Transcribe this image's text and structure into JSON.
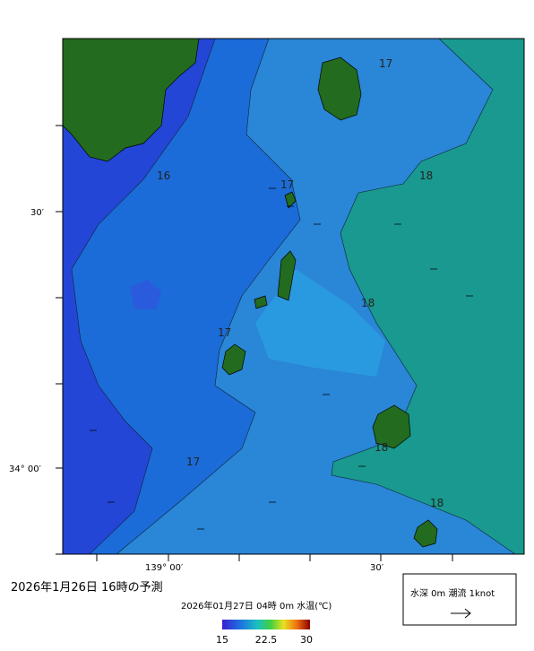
{
  "header": {
    "forecast": "2026年1月26日  16時の予測"
  },
  "map": {
    "lat_labels": [
      "30′",
      "34° 00′"
    ],
    "lon_labels": [
      "139° 00′",
      "30′"
    ],
    "contour_labels": [
      "17",
      "16",
      "17",
      "18",
      "18",
      "17",
      "17",
      "18",
      "18"
    ]
  },
  "colorbar": {
    "title": "2026年01月27日 04時 0m 水温(℃)",
    "ticks": [
      15,
      22.5,
      30
    ]
  },
  "legend": {
    "text": "水深 0m 潮流 1knot"
  }
}
